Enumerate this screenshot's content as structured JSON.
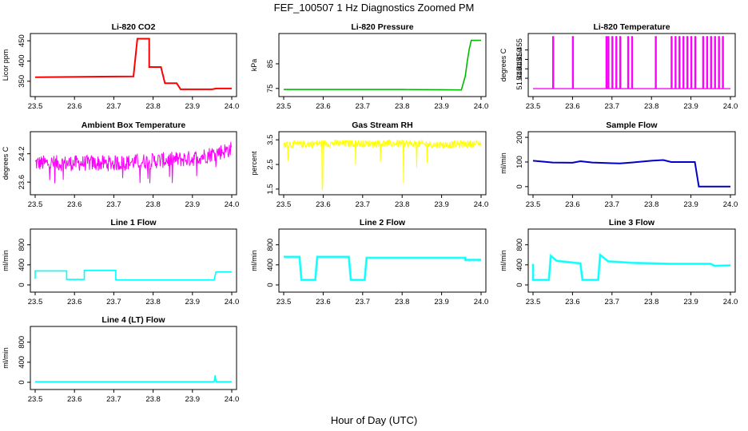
{
  "figure": {
    "title": "FEF_100507  1 Hz Diagnostics Zoomed PM",
    "xlabel": "Hour of Day (UTC)"
  },
  "chart_data": [
    {
      "type": "line",
      "title": "Li-820 CO2",
      "ylabel": "Licor ppm",
      "color": "#ff0000",
      "xlim": [
        23.5,
        24.0
      ],
      "ylim": [
        320,
        460
      ],
      "xticks": [
        "23.5",
        "23.6",
        "23.7",
        "23.8",
        "23.9",
        "24.0"
      ],
      "yticks": [
        {
          "v": 350,
          "label": "350"
        },
        {
          "v": 400,
          "label": "400"
        },
        {
          "v": 450,
          "label": "450"
        }
      ],
      "x": [
        23.5,
        23.75,
        23.76,
        23.79,
        23.79,
        23.82,
        23.83,
        23.86,
        23.87,
        23.95,
        23.96,
        24.0
      ],
      "y": [
        360,
        362,
        455,
        455,
        385,
        385,
        345,
        345,
        330,
        330,
        332,
        332
      ]
    },
    {
      "type": "line",
      "title": "Li-820 Pressure",
      "ylabel": "kPa",
      "color": "#00bb00",
      "xlim": [
        23.5,
        24.0
      ],
      "ylim": [
        73,
        96
      ],
      "xticks": [
        "23.5",
        "23.6",
        "23.7",
        "23.8",
        "23.9",
        "24.0"
      ],
      "yticks": [
        {
          "v": 75,
          "label": "75"
        },
        {
          "v": 85,
          "label": "85"
        }
      ],
      "x": [
        23.5,
        23.6,
        23.7,
        23.8,
        23.9,
        23.95,
        23.96,
        23.965,
        23.97,
        23.975,
        24.0
      ],
      "y": [
        74.6,
        74.6,
        74.6,
        74.6,
        74.5,
        74.4,
        80,
        86,
        91,
        94.5,
        94.5
      ]
    },
    {
      "type": "line",
      "title": "Li-820 Temperature",
      "ylabel": "degrees C",
      "color": "#ff00ff",
      "xlim": [
        23.5,
        24.0
      ],
      "ylim": [
        51.432,
        51.462
      ],
      "xticks": [
        "23.5",
        "23.6",
        "23.7",
        "23.8",
        "23.9",
        "24.0"
      ],
      "yticks": [
        {
          "v": 51.44,
          "label": "51.440"
        },
        {
          "v": 51.445,
          "label": "51.445"
        },
        {
          "v": 51.45,
          "label": "51.450"
        },
        {
          "v": 51.455,
          "label": "51.455"
        }
      ],
      "baseline": 51.4345,
      "peak": 51.462,
      "spikes": [
        23.55,
        23.6,
        23.685,
        23.69,
        23.7,
        23.71,
        23.72,
        23.74,
        23.75,
        23.81,
        23.85,
        23.86,
        23.87,
        23.88,
        23.89,
        23.9,
        23.91,
        23.93,
        23.94,
        23.95,
        23.96,
        23.97,
        23.98
      ]
    },
    {
      "type": "line",
      "title": "Ambient Box Temperature",
      "ylabel": "degrees C",
      "color": "#ff00ff",
      "xlim": [
        23.5,
        24.0
      ],
      "ylim": [
        23.4,
        24.6
      ],
      "xticks": [
        "23.5",
        "23.6",
        "23.7",
        "23.8",
        "23.9",
        "24.0"
      ],
      "yticks": [
        {
          "v": 23.6,
          "label": "23.6"
        },
        {
          "v": 24.2,
          "label": "24.2"
        }
      ],
      "x": [
        23.5,
        23.6,
        23.7,
        23.8,
        23.9,
        24.0
      ],
      "y": [
        24.0,
        24.0,
        24.0,
        24.05,
        24.1,
        24.3
      ]
    },
    {
      "type": "line",
      "title": "Gas Stream RH",
      "ylabel": "percent",
      "color": "#ffff00",
      "xlim": [
        23.5,
        24.0
      ],
      "ylim": [
        1.4,
        3.7
      ],
      "xticks": [
        "23.5",
        "23.6",
        "23.7",
        "23.8",
        "23.9",
        "24.0"
      ],
      "yticks": [
        {
          "v": 1.5,
          "label": "1.5"
        },
        {
          "v": 2.5,
          "label": "2.5"
        },
        {
          "v": 3.5,
          "label": "3.5"
        }
      ],
      "x": [
        23.5,
        23.6,
        23.7,
        23.8,
        23.9,
        24.0
      ],
      "y": [
        3.3,
        3.35,
        3.35,
        3.35,
        3.3,
        3.35
      ]
    },
    {
      "type": "line",
      "title": "Sample Flow",
      "ylabel": "ml/min",
      "color": "#0000cc",
      "xlim": [
        23.5,
        24.0
      ],
      "ylim": [
        -20,
        210
      ],
      "xticks": [
        "23.5",
        "23.6",
        "23.7",
        "23.8",
        "23.9",
        "24.0"
      ],
      "yticks": [
        {
          "v": 0,
          "label": "0"
        },
        {
          "v": 100,
          "label": "100"
        },
        {
          "v": 200,
          "label": "200"
        }
      ],
      "x": [
        23.5,
        23.55,
        23.6,
        23.62,
        23.65,
        23.7,
        23.72,
        23.75,
        23.8,
        23.83,
        23.85,
        23.91,
        23.92,
        23.95,
        24.0
      ],
      "y": [
        105,
        98,
        97,
        103,
        98,
        95,
        94,
        98,
        105,
        108,
        100,
        100,
        0,
        0,
        0
      ]
    },
    {
      "type": "line",
      "title": "Line 1 Flow",
      "ylabel": "ml/min",
      "color": "#00ffff",
      "xlim": [
        23.5,
        24.0
      ],
      "ylim": [
        -80,
        1050
      ],
      "xticks": [
        "23.5",
        "23.6",
        "23.7",
        "23.8",
        "23.9",
        "24.0"
      ],
      "yticks": [
        {
          "v": 0,
          "label": "0"
        },
        {
          "v": 400,
          "label": "400"
        },
        {
          "v": 800,
          "label": "800"
        }
      ],
      "x": [
        23.5,
        23.5,
        23.58,
        23.58,
        23.625,
        23.625,
        23.705,
        23.705,
        23.955,
        23.96,
        24.0
      ],
      "y": [
        120,
        280,
        280,
        110,
        110,
        290,
        290,
        100,
        100,
        260,
        260
      ]
    },
    {
      "type": "line",
      "title": "Line 2 Flow",
      "ylabel": "ml/min",
      "color": "#00ffff",
      "xlim": [
        23.5,
        24.0
      ],
      "ylim": [
        -80,
        1050
      ],
      "xticks": [
        "23.5",
        "23.6",
        "23.7",
        "23.8",
        "23.9",
        "24.0"
      ],
      "yticks": [
        {
          "v": 0,
          "label": "0"
        },
        {
          "v": 400,
          "label": "400"
        },
        {
          "v": 800,
          "label": "800"
        }
      ],
      "x": [
        23.5,
        23.54,
        23.545,
        23.58,
        23.585,
        23.665,
        23.67,
        23.705,
        23.71,
        23.96,
        23.96,
        24.0
      ],
      "y": [
        560,
        560,
        100,
        100,
        560,
        560,
        100,
        100,
        540,
        540,
        500,
        500
      ]
    },
    {
      "type": "line",
      "title": "Line 3 Flow",
      "ylabel": "ml/min",
      "color": "#00ffff",
      "xlim": [
        23.5,
        24.0
      ],
      "ylim": [
        -80,
        1050
      ],
      "xticks": [
        "23.5",
        "23.6",
        "23.7",
        "23.8",
        "23.9",
        "24.0"
      ],
      "yticks": [
        {
          "v": 0,
          "label": "0"
        },
        {
          "v": 400,
          "label": "400"
        },
        {
          "v": 800,
          "label": "800"
        }
      ],
      "x": [
        23.5,
        23.5,
        23.505,
        23.54,
        23.545,
        23.56,
        23.62,
        23.625,
        23.665,
        23.67,
        23.69,
        23.75,
        23.85,
        23.95,
        23.96,
        24.0
      ],
      "y": [
        420,
        100,
        100,
        100,
        580,
        480,
        430,
        100,
        100,
        600,
        470,
        440,
        420,
        420,
        380,
        390
      ]
    },
    {
      "type": "line",
      "title": "Line 4 (LT) Flow",
      "ylabel": "ml/min",
      "color": "#00ffff",
      "xlim": [
        23.5,
        24.0
      ],
      "ylim": [
        -80,
        1050
      ],
      "xticks": [
        "23.5",
        "23.6",
        "23.7",
        "23.8",
        "23.9",
        "24.0"
      ],
      "yticks": [
        {
          "v": 0,
          "label": "0"
        },
        {
          "v": 400,
          "label": "400"
        },
        {
          "v": 800,
          "label": "800"
        }
      ],
      "x": [
        23.5,
        23.955,
        23.958,
        23.96,
        24.0
      ],
      "y": [
        10,
        10,
        140,
        10,
        10
      ]
    }
  ]
}
